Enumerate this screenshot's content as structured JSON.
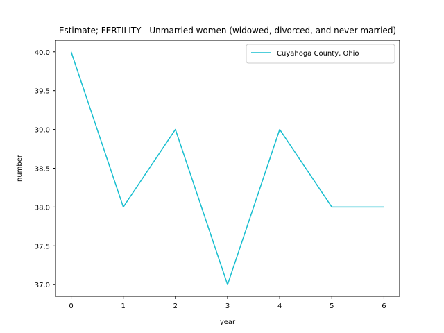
{
  "chart_data": {
    "type": "line",
    "title": "Estimate; FERTILITY - Unmarried women (widowed, divorced, and never married)",
    "xlabel": "year",
    "ylabel": "number",
    "x": [
      0,
      1,
      2,
      3,
      4,
      5,
      6
    ],
    "series": [
      {
        "name": "Cuyahoga County, Ohio",
        "values": [
          40.0,
          38.0,
          39.0,
          37.0,
          39.0,
          38.0,
          38.0
        ],
        "color": "#17becf"
      }
    ],
    "xticks": [
      "0",
      "1",
      "2",
      "3",
      "4",
      "5",
      "6"
    ],
    "yticks": [
      "37.0",
      "37.5",
      "38.0",
      "38.5",
      "39.0",
      "39.5",
      "40.0"
    ],
    "xlim": [
      -0.3,
      6.3
    ],
    "ylim": [
      36.85,
      40.15
    ],
    "grid": false,
    "legend": "top-right"
  }
}
